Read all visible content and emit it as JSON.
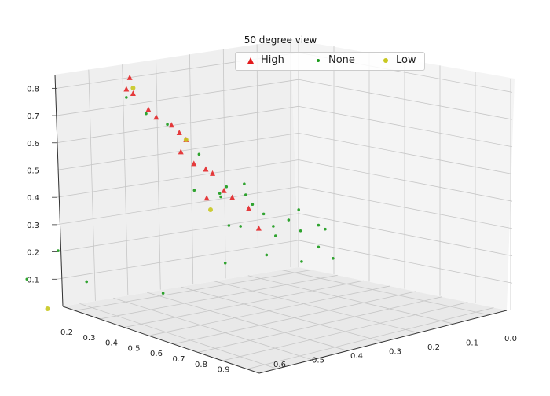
{
  "chart_data": {
    "type": "scatter",
    "title": "50 degree view",
    "xlabel": "",
    "ylabel": "",
    "zlabel": "",
    "axes": {
      "left_depth_ticks": [
        "0.2",
        "0.3",
        "0.4",
        "0.5",
        "0.6",
        "0.7",
        "0.8",
        "0.9"
      ],
      "right_depth_ticks": [
        "0.0",
        "0.1",
        "0.2",
        "0.3",
        "0.4",
        "0.5",
        "0.6"
      ],
      "vertical_ticks": [
        "0.1",
        "0.2",
        "0.3",
        "0.4",
        "0.5",
        "0.6",
        "0.7",
        "0.8"
      ],
      "vertical_range": [
        0.0,
        0.85
      ],
      "left_range": [
        0.15,
        0.95
      ],
      "right_range": [
        -0.05,
        0.65
      ]
    },
    "grid": true,
    "legend_placement": "top-center",
    "series": [
      {
        "name": "High",
        "marker": "triangle",
        "color": "#e31a1c",
        "points": [
          {
            "a": 0.25,
            "b": 0.3,
            "z": 0.35
          },
          {
            "a": 0.2,
            "b": 0.5,
            "z": 0.78
          },
          {
            "a": 0.2,
            "b": 0.48,
            "z": 0.76
          },
          {
            "a": 0.22,
            "b": 0.45,
            "z": 0.7
          },
          {
            "a": 0.25,
            "b": 0.45,
            "z": 0.68
          },
          {
            "a": 0.27,
            "b": 0.42,
            "z": 0.65
          },
          {
            "a": 0.3,
            "b": 0.42,
            "z": 0.63
          },
          {
            "a": 0.3,
            "b": 0.4,
            "z": 0.6
          },
          {
            "a": 0.28,
            "b": 0.4,
            "z": 0.55
          },
          {
            "a": 0.33,
            "b": 0.4,
            "z": 0.52
          },
          {
            "a": 0.35,
            "b": 0.38,
            "z": 0.5
          },
          {
            "a": 0.35,
            "b": 0.36,
            "z": 0.48
          },
          {
            "a": 0.42,
            "b": 0.38,
            "z": 0.44
          },
          {
            "a": 0.4,
            "b": 0.34,
            "z": 0.4
          },
          {
            "a": 0.45,
            "b": 0.33,
            "z": 0.37
          },
          {
            "a": 0.45,
            "b": 0.3,
            "z": 0.29
          },
          {
            "a": 0.2,
            "b": 0.49,
            "z": 0.82
          }
        ]
      },
      {
        "name": "None",
        "marker": "circle",
        "color": "#1a9a1a",
        "points": [
          {
            "a": 0.4,
            "b": 0.35,
            "z": 0.3
          },
          {
            "a": 0.38,
            "b": 0.3,
            "z": 0.28
          },
          {
            "a": 0.55,
            "b": 0.2,
            "z": 0.22
          },
          {
            "a": 0.3,
            "b": 0.3,
            "z": 0.38
          },
          {
            "a": 0.28,
            "b": 0.36,
            "z": 0.4
          },
          {
            "a": 0.3,
            "b": 0.28,
            "z": 0.4
          },
          {
            "a": 0.33,
            "b": 0.32,
            "z": 0.38
          },
          {
            "a": 0.4,
            "b": 0.28,
            "z": 0.36
          },
          {
            "a": 0.43,
            "b": 0.27,
            "z": 0.33
          },
          {
            "a": 0.48,
            "b": 0.28,
            "z": 0.3
          },
          {
            "a": 0.5,
            "b": 0.25,
            "z": 0.32
          },
          {
            "a": 0.45,
            "b": 0.25,
            "z": 0.25
          },
          {
            "a": 0.52,
            "b": 0.23,
            "z": 0.28
          },
          {
            "a": 0.55,
            "b": 0.2,
            "z": 0.3
          },
          {
            "a": 0.55,
            "b": 0.18,
            "z": 0.28
          },
          {
            "a": 0.48,
            "b": 0.3,
            "z": 0.2
          },
          {
            "a": 0.55,
            "b": 0.25,
            "z": 0.18
          },
          {
            "a": 0.58,
            "b": 0.18,
            "z": 0.18
          },
          {
            "a": 0.5,
            "b": 0.22,
            "z": 0.35
          },
          {
            "a": 0.2,
            "b": 0.5,
            "z": 0.75
          },
          {
            "a": 0.25,
            "b": 0.48,
            "z": 0.7
          },
          {
            "a": 0.35,
            "b": 0.4,
            "z": 0.56
          },
          {
            "a": 0.28,
            "b": 0.44,
            "z": 0.66
          },
          {
            "a": 0.6,
            "b": 0.7,
            "z": 0.2
          },
          {
            "a": 0.5,
            "b": 0.85,
            "z": 0.25
          },
          {
            "a": 0.4,
            "b": 0.95,
            "z": 0.25
          },
          {
            "a": 0.3,
            "b": 0.78,
            "z": 0.28
          },
          {
            "a": 0.58,
            "b": 0.5,
            "z": 0.25
          },
          {
            "a": 0.42,
            "b": 0.32,
            "z": 0.45
          },
          {
            "a": 0.4,
            "b": 0.3,
            "z": 0.4
          }
        ]
      },
      {
        "name": "Low",
        "marker": "circle",
        "color": "#c8c820",
        "points": [
          {
            "a": 0.2,
            "b": 0.48,
            "z": 0.78
          },
          {
            "a": 0.3,
            "b": 0.4,
            "z": 0.6
          },
          {
            "a": 0.42,
            "b": 0.42,
            "z": 0.38
          },
          {
            "a": 0.35,
            "b": 0.85,
            "z": 0.1
          }
        ]
      }
    ]
  }
}
